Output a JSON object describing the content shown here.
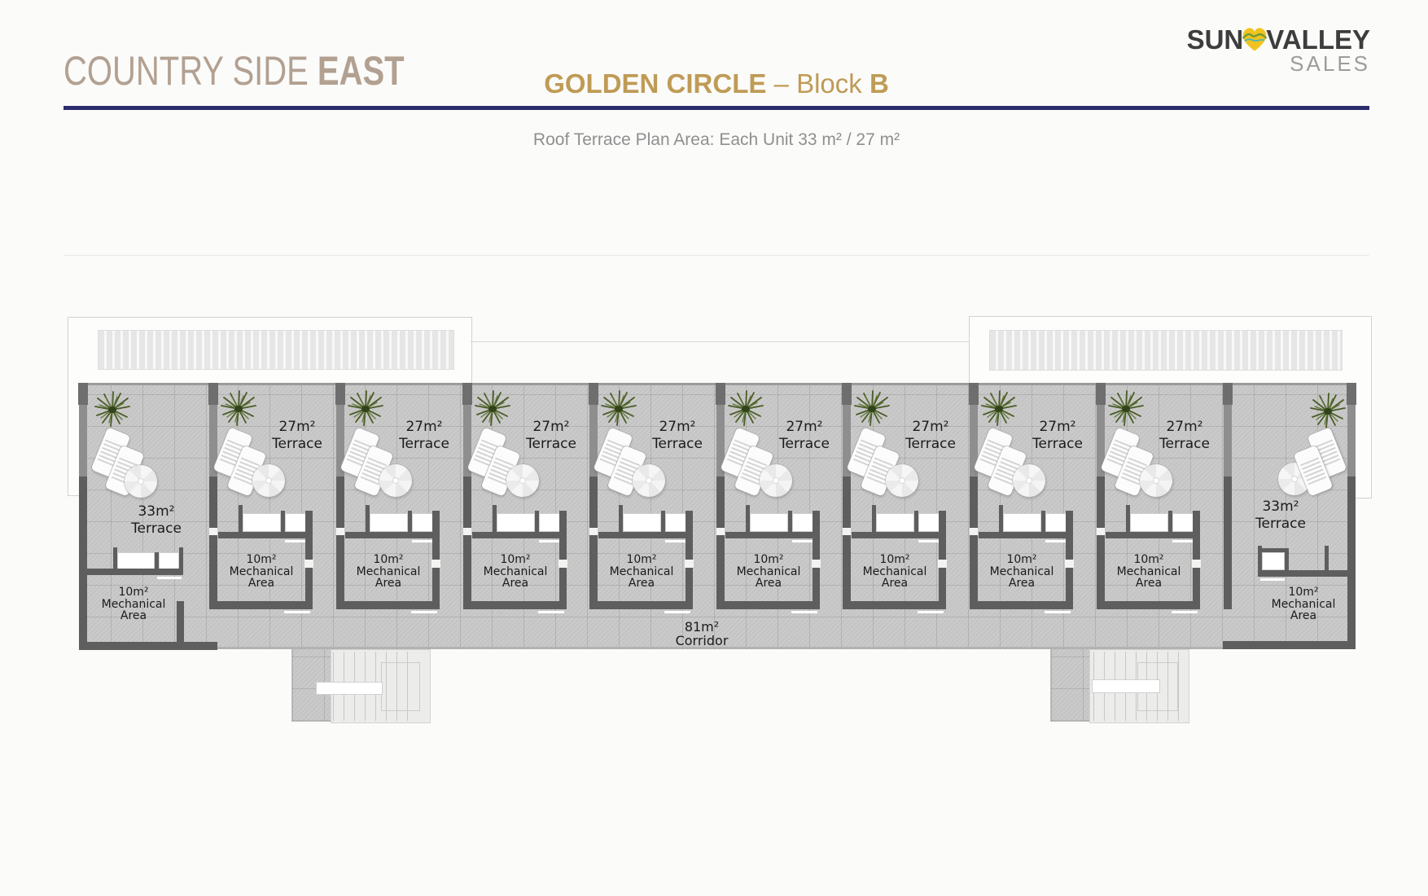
{
  "header": {
    "project_name": "COUNTRY SIDE ",
    "project_name_bold": "EAST",
    "plan_title": "GOLDEN CIRCLE",
    "separator": " – ",
    "block_label": "Block ",
    "block_letter": "B",
    "subtitle": "Roof Terrace Plan Area: Each Unit 33 m² / 27 m²"
  },
  "logo": {
    "part1": "SUN",
    "part2": "VALLEY",
    "part3": "SALES"
  },
  "plan": {
    "corridor": {
      "area": "81m²",
      "label": "Corridor"
    },
    "units": [
      {
        "terrace": [
          "33m²",
          "Terrace"
        ],
        "mech": [
          "10m²",
          "Mechanical",
          "Area"
        ]
      },
      {
        "terrace": [
          "27m²",
          "Terrace"
        ],
        "mech": [
          "10m²",
          "Mechanical",
          "Area"
        ]
      },
      {
        "terrace": [
          "27m²",
          "Terrace"
        ],
        "mech": [
          "10m²",
          "Mechanical",
          "Area"
        ]
      },
      {
        "terrace": [
          "27m²",
          "Terrace"
        ],
        "mech": [
          "10m²",
          "Mechanical",
          "Area"
        ]
      },
      {
        "terrace": [
          "27m²",
          "Terrace"
        ],
        "mech": [
          "10m²",
          "Mechanical",
          "Area"
        ]
      },
      {
        "terrace": [
          "27m²",
          "Terrace"
        ],
        "mech": [
          "10m²",
          "Mechanical",
          "Area"
        ]
      },
      {
        "terrace": [
          "27m²",
          "Terrace"
        ],
        "mech": [
          "10m²",
          "Mechanical",
          "Area"
        ]
      },
      {
        "terrace": [
          "27m²",
          "Terrace"
        ],
        "mech": [
          "10m²",
          "Mechanical",
          "Area"
        ]
      },
      {
        "terrace": [
          "27m²",
          "Terrace"
        ],
        "mech": [
          "10m²",
          "Mechanical",
          "Area"
        ]
      },
      {
        "terrace": [
          "33m²",
          "Terrace"
        ],
        "mech": [
          "10m²",
          "Mechanical",
          "Area"
        ]
      }
    ]
  },
  "colors": {
    "title_tan": "#b2a091",
    "accent_gold": "#bf9b55",
    "navy_rule": "#2c2b6d",
    "heart_yellow": "#f2c31f",
    "heart_green": "#6f9a33",
    "heart_teal": "#49b8b4",
    "tile_gray": "#c8c8c8",
    "wall_dark": "#5e5e5e",
    "wall_medium": "#8e8e8e",
    "plant_green": "#495c26"
  }
}
